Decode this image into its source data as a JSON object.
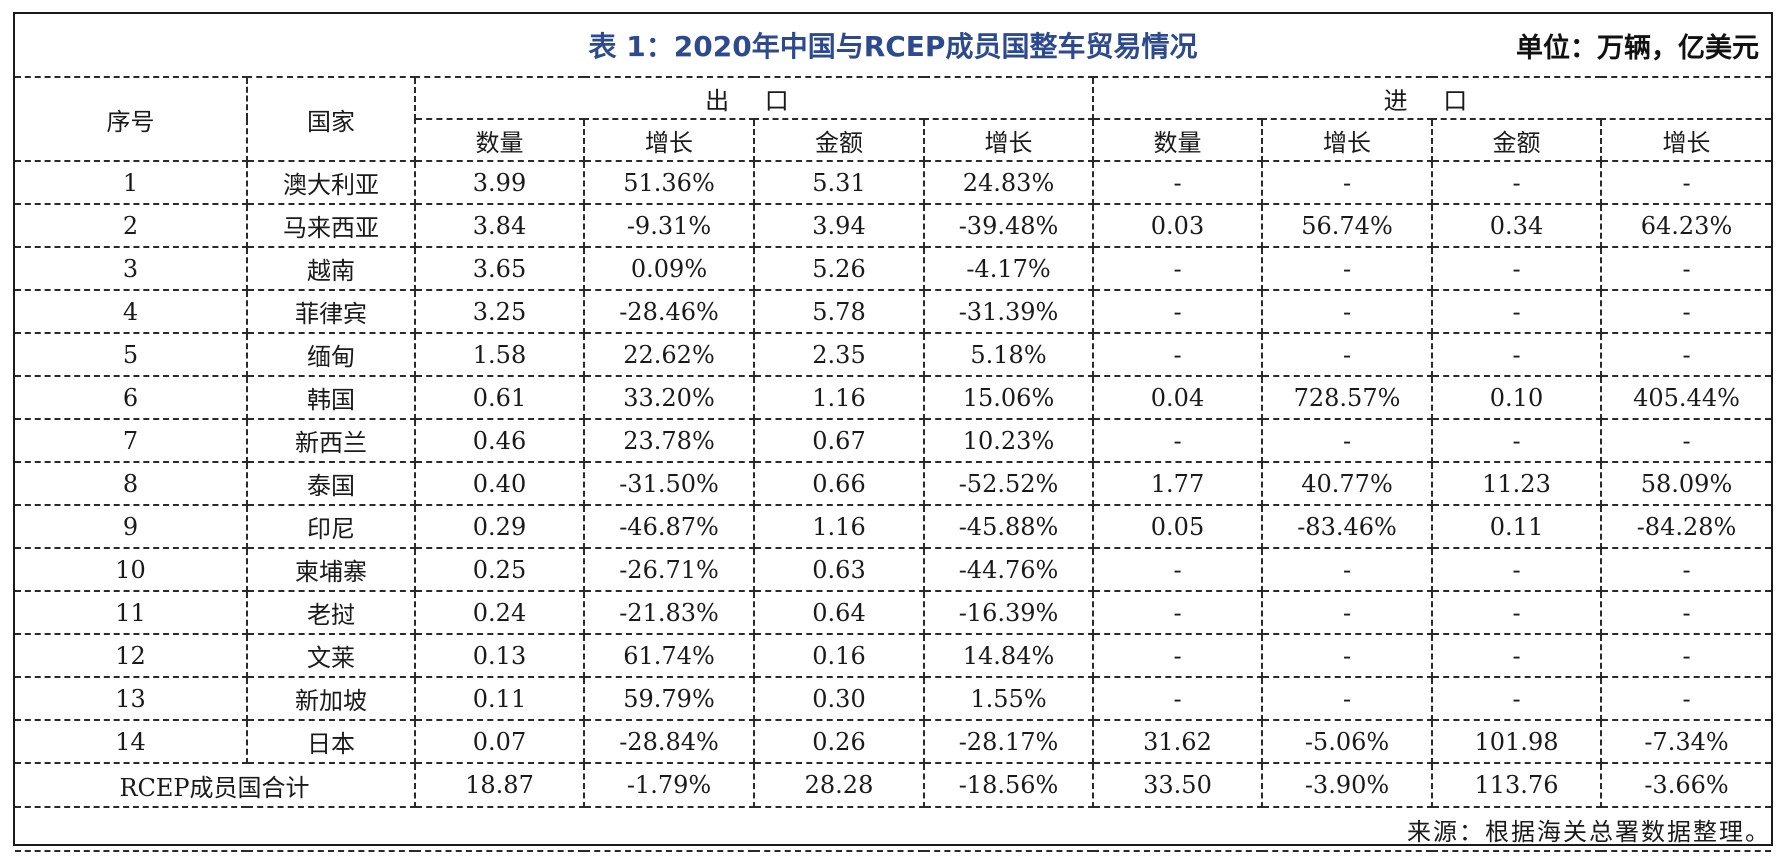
{
  "title": "表 1：2020年中国与RCEP成员国整车贸易情况",
  "unit": "单位：万辆，亿美元",
  "headers": {
    "seq": "序号",
    "country": "国家",
    "export": "出 口",
    "import": "进 口",
    "sub": [
      "数量",
      "增长",
      "金额",
      "增长",
      "数量",
      "增长",
      "金额",
      "增长"
    ]
  },
  "rows": [
    [
      "1",
      "澳大利亚",
      "3.99",
      "51.36%",
      "5.31",
      "24.83%",
      "-",
      "-",
      "-",
      "-"
    ],
    [
      "2",
      "马来西亚",
      "3.84",
      "-9.31%",
      "3.94",
      "-39.48%",
      "0.03",
      "56.74%",
      "0.34",
      "64.23%"
    ],
    [
      "3",
      "越南",
      "3.65",
      "0.09%",
      "5.26",
      "-4.17%",
      "-",
      "-",
      "-",
      "-"
    ],
    [
      "4",
      "菲律宾",
      "3.25",
      "-28.46%",
      "5.78",
      "-31.39%",
      "-",
      "-",
      "-",
      "-"
    ],
    [
      "5",
      "缅甸",
      "1.58",
      "22.62%",
      "2.35",
      "5.18%",
      "-",
      "-",
      "-",
      "-"
    ],
    [
      "6",
      "韩国",
      "0.61",
      "33.20%",
      "1.16",
      "15.06%",
      "0.04",
      "728.57%",
      "0.10",
      "405.44%"
    ],
    [
      "7",
      "新西兰",
      "0.46",
      "23.78%",
      "0.67",
      "10.23%",
      "-",
      "-",
      "-",
      "-"
    ],
    [
      "8",
      "泰国",
      "0.40",
      "-31.50%",
      "0.66",
      "-52.52%",
      "1.77",
      "40.77%",
      "11.23",
      "58.09%"
    ],
    [
      "9",
      "印尼",
      "0.29",
      "-46.87%",
      "1.16",
      "-45.88%",
      "0.05",
      "-83.46%",
      "0.11",
      "-84.28%"
    ],
    [
      "10",
      "柬埔寨",
      "0.25",
      "-26.71%",
      "0.63",
      "-44.76%",
      "-",
      "-",
      "-",
      "-"
    ],
    [
      "11",
      "老挝",
      "0.24",
      "-21.83%",
      "0.64",
      "-16.39%",
      "-",
      "-",
      "-",
      "-"
    ],
    [
      "12",
      "文莱",
      "0.13",
      "61.74%",
      "0.16",
      "14.84%",
      "-",
      "-",
      "-",
      "-"
    ],
    [
      "13",
      "新加坡",
      "0.11",
      "59.79%",
      "0.30",
      "1.55%",
      "-",
      "-",
      "-",
      "-"
    ],
    [
      "14",
      "日本",
      "0.07",
      "-28.84%",
      "0.26",
      "-28.17%",
      "31.62",
      "-5.06%",
      "101.98",
      "-7.34%"
    ]
  ],
  "total": {
    "label": "RCEP成员国合计",
    "values": [
      "18.87",
      "-1.79%",
      "28.28",
      "-18.56%",
      "33.50",
      "-3.90%",
      "113.76",
      "-3.66%"
    ]
  },
  "source": "来源：根据海关总署数据整理。"
}
